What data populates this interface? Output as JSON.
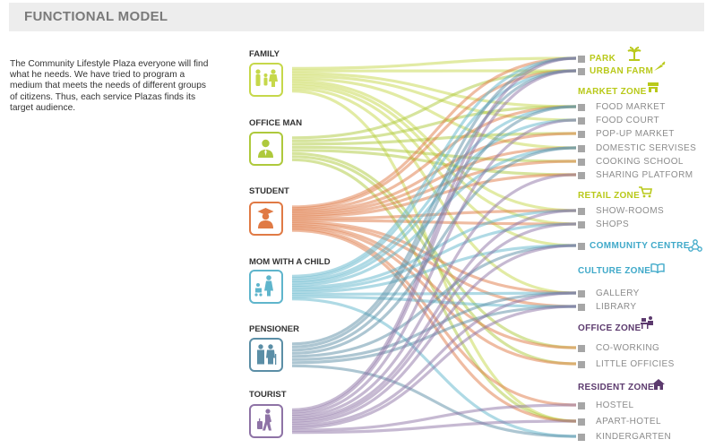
{
  "title": "FUNCTIONAL MODEL",
  "description": "The Community Lifestyle Plaza everyone will find what he needs. We have tried to program a medium that meets the needs of different groups of citizens. Thus, each service Plazas finds its target audience.",
  "sources": [
    {
      "label": "FAMILY",
      "color": "#c6d84a",
      "icon": "family-icon"
    },
    {
      "label": "OFFICE MAN",
      "color": "#aec93c",
      "icon": "office-man-icon"
    },
    {
      "label": "STUDENT",
      "color": "#e07a45",
      "icon": "student-icon"
    },
    {
      "label": "MOM WITH A CHILD",
      "color": "#5fb5cc",
      "icon": "mom-with-child-icon"
    },
    {
      "label": "PENSIONER",
      "color": "#5b8ea6",
      "icon": "pensioner-icon"
    },
    {
      "label": "TOURIST",
      "color": "#8e73a6",
      "icon": "tourist-icon"
    }
  ],
  "zones": {
    "park": {
      "label": "PARK",
      "color": "#b9c91a",
      "icon": "palm-tree-icon"
    },
    "urban_farm": {
      "label": "URBAN FARM",
      "color": "#b9c91a",
      "icon": "carrot-icon"
    },
    "market": {
      "label": "MARKET ZONE",
      "color": "#b9c91a",
      "icon": "market-icon"
    },
    "retail": {
      "label": "RETAIL ZONE",
      "color": "#b9c91a",
      "icon": "shopping-cart-icon"
    },
    "community": {
      "label": "COMMUNITY CENTRE",
      "color": "#3fa9c9",
      "icon": "network-icon"
    },
    "culture": {
      "label": "CULTURE ZONE",
      "color": "#3fa9c9",
      "icon": "open-book-icon"
    },
    "office": {
      "label": "OFFICE ZONE",
      "color": "#5c3a6e",
      "icon": "office-desk-icon"
    },
    "resident": {
      "label": "RESIDENT ZONE",
      "color": "#5c3a6e",
      "icon": "house-icon"
    }
  },
  "targets": {
    "market_items": [
      "FOOD MARKET",
      "FOOD COURT",
      "POP-UP MARKET",
      "DOMESTIC SERVISES",
      "COOKING SCHOOL",
      "SHARING PLATFORM"
    ],
    "retail_items": [
      "SHOW-ROOMS",
      "SHOPS"
    ],
    "culture_items": [
      "GALLERY",
      "LIBRARY"
    ],
    "office_items": [
      "CO-WORKING",
      "LITTLE OFFICIES"
    ],
    "resident_items": [
      "HOSTEL",
      "APART-HOTEL",
      "KINDERGARTEN"
    ],
    "item_color": "#8c8c8c"
  },
  "links": [
    [
      0,
      0
    ],
    [
      0,
      1
    ],
    [
      0,
      2
    ],
    [
      0,
      3
    ],
    [
      0,
      5
    ],
    [
      0,
      8
    ],
    [
      0,
      9
    ],
    [
      0,
      10
    ],
    [
      0,
      11
    ],
    [
      0,
      16
    ],
    [
      1,
      1
    ],
    [
      1,
      2
    ],
    [
      1,
      4
    ],
    [
      1,
      6
    ],
    [
      1,
      7
    ],
    [
      1,
      13
    ],
    [
      1,
      14
    ],
    [
      1,
      16
    ],
    [
      2,
      0
    ],
    [
      2,
      1
    ],
    [
      2,
      2
    ],
    [
      2,
      4
    ],
    [
      2,
      5
    ],
    [
      2,
      6
    ],
    [
      2,
      7
    ],
    [
      2,
      8
    ],
    [
      2,
      9
    ],
    [
      2,
      11
    ],
    [
      2,
      12
    ],
    [
      2,
      13
    ],
    [
      2,
      14
    ],
    [
      2,
      15
    ],
    [
      2,
      16
    ],
    [
      3,
      0
    ],
    [
      3,
      1
    ],
    [
      3,
      2
    ],
    [
      3,
      3
    ],
    [
      3,
      5
    ],
    [
      3,
      8
    ],
    [
      3,
      9
    ],
    [
      3,
      10
    ],
    [
      3,
      11
    ],
    [
      3,
      12
    ],
    [
      3,
      17
    ],
    [
      4,
      0
    ],
    [
      4,
      1
    ],
    [
      4,
      2
    ],
    [
      4,
      5
    ],
    [
      4,
      10
    ],
    [
      4,
      11
    ],
    [
      4,
      12
    ],
    [
      4,
      17
    ],
    [
      5,
      0
    ],
    [
      5,
      1
    ],
    [
      5,
      3
    ],
    [
      5,
      7
    ],
    [
      5,
      8
    ],
    [
      5,
      9
    ],
    [
      5,
      10
    ],
    [
      5,
      11
    ],
    [
      5,
      12
    ],
    [
      5,
      15
    ],
    [
      5,
      16
    ]
  ]
}
